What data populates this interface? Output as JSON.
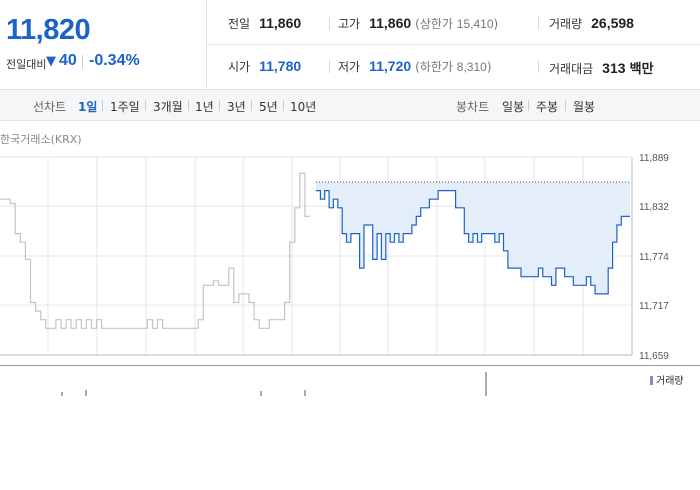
{
  "quote": {
    "price": "11,820",
    "change_label": "전일대비",
    "change_arrow": "▼",
    "change_amount": "40",
    "change_pct": "-0.34%"
  },
  "stats": {
    "prev_close": {
      "label": "전일",
      "value": "11,860"
    },
    "high": {
      "label": "고가",
      "value": "11,860",
      "limit_label": "상한가",
      "limit_value": "15,410"
    },
    "volume": {
      "label": "거래량",
      "value": "26,598"
    },
    "open": {
      "label": "시가",
      "value": "11,780"
    },
    "low": {
      "label": "저가",
      "value": "11,720",
      "limit_label": "하한가",
      "limit_value": "8,310"
    },
    "trade_value": {
      "label": "거래대금",
      "value": "313",
      "unit": "백만"
    }
  },
  "line_chart_tabs": {
    "title": "선차트",
    "items": [
      "1일",
      "1주일",
      "3개월",
      "1년",
      "3년",
      "5년",
      "10년"
    ],
    "active": "1일"
  },
  "candle_chart_tabs": {
    "title": "봉차트",
    "items": [
      "일봉",
      "주봉",
      "월봉"
    ]
  },
  "chart": {
    "exchange_label": "한국거래소(KRX)",
    "volume_legend": "거래량",
    "colors": {
      "today_line": "#1c63c7",
      "today_fill": "#e4eefb",
      "prev_line": "#c4c4c4",
      "grid": "#e6e6e6"
    }
  },
  "chart_data": {
    "type": "line",
    "y_ticks": [
      "11,889",
      "11,832",
      "11,774",
      "11,717",
      "11,659"
    ],
    "ylim": [
      11659,
      11889
    ],
    "reference_line": 11860,
    "series": [
      {
        "values": [
          11840,
          11840,
          11835,
          11800,
          11790,
          11770,
          11720,
          11710,
          11700,
          11690,
          11690,
          11700,
          11690,
          11700,
          11690,
          11700,
          11690,
          11700,
          11690,
          11700,
          11690,
          11690,
          11690,
          11690,
          11690,
          11690,
          11690,
          11690,
          11690,
          11700,
          11690,
          11700,
          11690,
          11690,
          11690,
          11690,
          11690,
          11690,
          11690,
          11700,
          11740,
          11740,
          11745,
          11740,
          11740,
          11760,
          11720,
          11730,
          11730,
          11720,
          11700,
          11690,
          11690,
          11700,
          11700,
          11700,
          11720,
          11790,
          11830,
          11870,
          11820,
          11820
        ]
      },
      {
        "values": [
          11850,
          11840,
          11850,
          11830,
          11840,
          11830,
          11800,
          11790,
          11800,
          11800,
          11760,
          11810,
          11810,
          11770,
          11800,
          11770,
          11800,
          11790,
          11800,
          11790,
          11800,
          11800,
          11810,
          11820,
          11830,
          11830,
          11840,
          11840,
          11850,
          11850,
          11850,
          11850,
          11830,
          11830,
          11800,
          11790,
          11800,
          11790,
          11800,
          11800,
          11800,
          11790,
          11800,
          11780,
          11760,
          11760,
          11760,
          11750,
          11750,
          11750,
          11750,
          11760,
          11750,
          11750,
          11740,
          11760,
          11760,
          11750,
          11750,
          11740,
          11740,
          11740,
          11750,
          11740,
          11730,
          11730,
          11730,
          11760,
          11790,
          11810,
          11820,
          11820,
          11820
        ]
      }
    ]
  }
}
